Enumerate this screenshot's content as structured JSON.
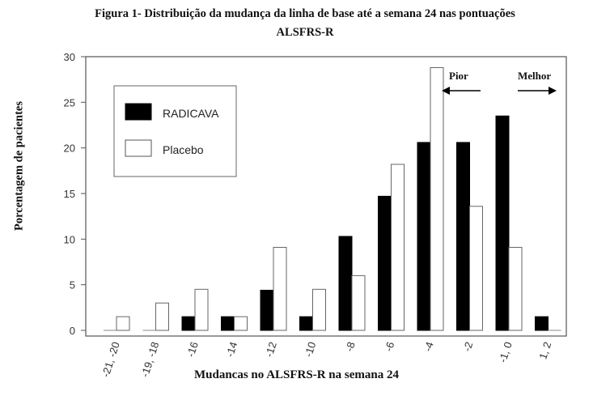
{
  "title_line1": "Figura 1- Distribuição da mudança da linha de base até a semana 24 nas pontuações",
  "title_line2": "ALSFRS-R",
  "chart_data": {
    "type": "bar",
    "title": "Figura 1- Distribuição da mudança da linha de base até a semana 24 nas pontuações ALSFRS-R",
    "xlabel": "Mudancas no ALSFRS-R na semana 24",
    "ylabel": "Porcentagem de pacientes",
    "ylim": [
      0,
      30
    ],
    "yticks": [
      0,
      5,
      10,
      15,
      20,
      25,
      30
    ],
    "categories": [
      "-21, -20",
      "-19, -18",
      "-16",
      "-14",
      "-12",
      "-10",
      "-8",
      "-6",
      "-4",
      "-2",
      "-1, 0",
      "1, 2"
    ],
    "series": [
      {
        "name": "RADICAVA",
        "color": "#000000",
        "values": [
          0,
          0,
          1.5,
          1.5,
          4.4,
          1.5,
          10.3,
          14.7,
          20.6,
          20.6,
          23.5,
          1.5
        ]
      },
      {
        "name": "Placebo",
        "color": "#ffffff",
        "values": [
          1.5,
          3.0,
          4.5,
          1.5,
          9.1,
          4.5,
          6.0,
          18.2,
          28.8,
          13.6,
          9.1,
          0
        ]
      }
    ],
    "legend": "top-left",
    "grid": false,
    "annotations": [
      {
        "text": "Pior",
        "arrow": "left"
      },
      {
        "text": "Melhor",
        "arrow": "right"
      }
    ]
  }
}
